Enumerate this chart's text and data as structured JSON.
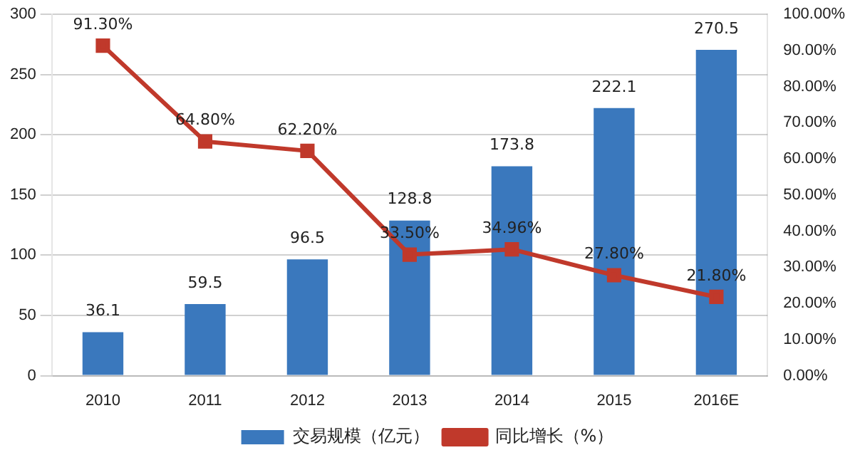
{
  "chart_data": {
    "type": "bar",
    "categories": [
      "2010",
      "2011",
      "2012",
      "2013",
      "2014",
      "2015",
      "2016E"
    ],
    "series": [
      {
        "name": "交易规模（亿元）",
        "color": "#3a78bd",
        "values": [
          36.1,
          59.5,
          96.5,
          128.8,
          173.8,
          222.1,
          270.5
        ],
        "value_labels": [
          "36.1",
          "59.5",
          "96.5",
          "128.8",
          "173.8",
          "222.1",
          "270.5"
        ]
      },
      {
        "name": "同比增长（%）",
        "type": "line",
        "axis": "y2",
        "color": "#c0392b",
        "values": [
          91.3,
          64.8,
          62.2,
          33.5,
          34.96,
          27.8,
          21.8
        ],
        "value_labels": [
          "91.30%",
          "64.80%",
          "62.20%",
          "33.50%",
          "34.96%",
          "27.80%",
          "21.80%"
        ]
      }
    ],
    "ylim": [
      0,
      300
    ],
    "yticks": [
      0,
      50,
      100,
      150,
      200,
      250,
      300
    ],
    "y2lim": [
      0,
      100
    ],
    "y2ticks": [
      {
        "value": 0,
        "label": "0.00%"
      },
      {
        "value": 10,
        "label": "10.00%"
      },
      {
        "value": 20,
        "label": "20.00%"
      },
      {
        "value": 30,
        "label": "30.00%"
      },
      {
        "value": 40,
        "label": "40.00%"
      },
      {
        "value": 50,
        "label": "50.00%"
      },
      {
        "value": 60,
        "label": "60.00%"
      },
      {
        "value": 70,
        "label": "70.00%"
      },
      {
        "value": 80,
        "label": "80.00%"
      },
      {
        "value": 90,
        "label": "90.00%"
      },
      {
        "value": 100,
        "label": "100.00%"
      }
    ],
    "grid": "y",
    "legend": "bottom",
    "marker": "square",
    "line_style": "solid"
  }
}
